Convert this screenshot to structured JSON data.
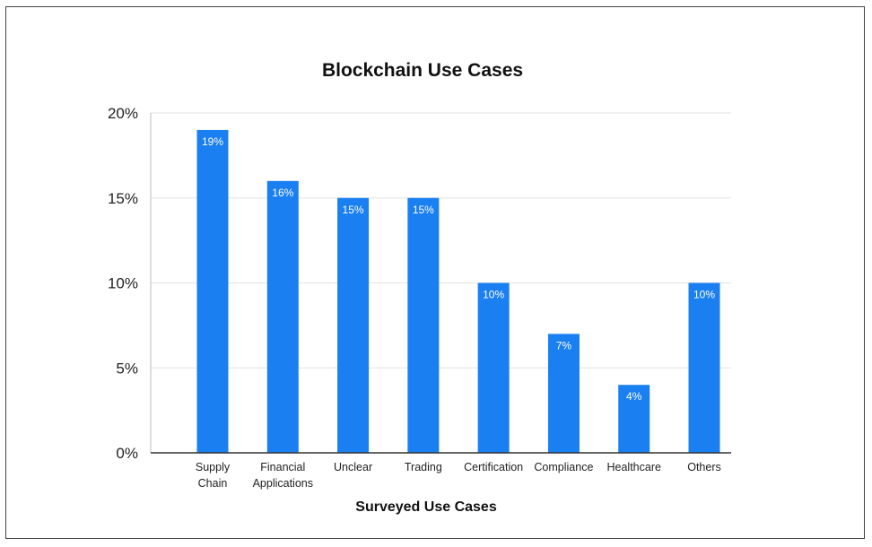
{
  "chart_data": {
    "type": "bar",
    "title": "Blockchain Use Cases",
    "xlabel": "Surveyed Use Cases",
    "ylabel": "",
    "categories": [
      [
        "Supply",
        "Chain"
      ],
      [
        "Financial",
        "Applications"
      ],
      [
        "Unclear"
      ],
      [
        "Trading"
      ],
      [
        "Certification"
      ],
      [
        "Compliance"
      ],
      [
        "Healthcare"
      ],
      [
        "Others"
      ]
    ],
    "values": [
      19,
      16,
      15,
      15,
      10,
      7,
      4,
      10
    ],
    "data_labels": [
      "19%",
      "16%",
      "15%",
      "15%",
      "10%",
      "7%",
      "4%",
      "10%"
    ],
    "ylim": [
      0,
      20
    ],
    "yticks": [
      0,
      5,
      10,
      15,
      20
    ],
    "ytick_labels": [
      "0%",
      "5%",
      "10%",
      "15%",
      "20%"
    ],
    "grid": true,
    "legend": "none",
    "bar_color": "#1a7ff0",
    "grid_color": "#e3e3e3",
    "axis_color": "#333333"
  }
}
